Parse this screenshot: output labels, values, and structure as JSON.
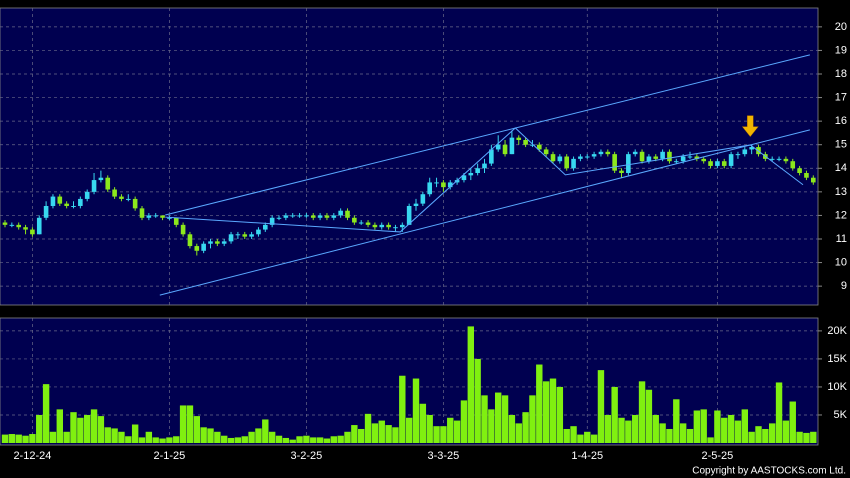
{
  "chart_data": [
    {
      "type": "candlestick",
      "categories": [
        null,
        null,
        null,
        null,
        "2-12-24",
        null,
        null,
        null,
        null,
        null,
        null,
        null,
        null,
        null,
        null,
        null,
        null,
        null,
        null,
        null,
        null,
        null,
        null,
        null,
        "2-1-25",
        null,
        null,
        null,
        null,
        null,
        null,
        null,
        null,
        null,
        null,
        null,
        null,
        null,
        null,
        null,
        null,
        null,
        null,
        null,
        "3-2-25",
        null,
        null,
        null,
        null,
        null,
        null,
        null,
        null,
        null,
        null,
        null,
        null,
        null,
        null,
        null,
        null,
        null,
        null,
        null,
        "3-3-25",
        null,
        null,
        null,
        null,
        null,
        null,
        null,
        null,
        null,
        null,
        null,
        null,
        null,
        null,
        null,
        null,
        null,
        null,
        null,
        null,
        "1-4-25",
        null,
        null,
        null,
        null,
        null,
        null,
        null,
        null,
        null,
        null,
        null,
        null,
        null,
        null,
        null,
        null,
        null,
        null,
        "2-5-25",
        null,
        null,
        null,
        null,
        null,
        null,
        null,
        null,
        null,
        null,
        null,
        null,
        null,
        null
      ],
      "ohlc": [
        [
          11.7,
          11.8,
          11.5,
          11.6
        ],
        [
          11.6,
          11.7,
          11.5,
          11.6
        ],
        [
          11.6,
          11.7,
          11.4,
          11.5
        ],
        [
          11.5,
          11.6,
          11.2,
          11.4
        ],
        [
          11.4,
          11.5,
          11.1,
          11.2
        ],
        [
          11.2,
          12.0,
          11.2,
          11.9
        ],
        [
          11.9,
          12.6,
          11.8,
          12.4
        ],
        [
          12.4,
          12.9,
          12.3,
          12.8
        ],
        [
          12.8,
          12.9,
          12.4,
          12.5
        ],
        [
          12.5,
          12.6,
          12.3,
          12.4
        ],
        [
          12.4,
          12.6,
          12.3,
          12.4
        ],
        [
          12.4,
          12.8,
          12.3,
          12.7
        ],
        [
          12.7,
          13.1,
          12.6,
          13.0
        ],
        [
          13.0,
          13.8,
          12.9,
          13.5
        ],
        [
          13.5,
          13.9,
          13.4,
          13.6
        ],
        [
          13.6,
          13.7,
          13.0,
          13.1
        ],
        [
          13.1,
          13.2,
          12.7,
          12.8
        ],
        [
          12.8,
          12.9,
          12.6,
          12.7
        ],
        [
          12.7,
          12.9,
          12.6,
          12.7
        ],
        [
          12.7,
          12.8,
          12.2,
          12.3
        ],
        [
          12.3,
          12.4,
          11.8,
          11.9
        ],
        [
          11.9,
          12.1,
          11.8,
          12.0
        ],
        [
          12.0,
          12.1,
          11.9,
          12.0
        ],
        [
          12.0,
          12.0,
          11.8,
          11.9
        ],
        [
          11.9,
          12.0,
          11.8,
          11.9
        ],
        [
          11.9,
          11.9,
          11.5,
          11.6
        ],
        [
          11.6,
          11.7,
          11.1,
          11.2
        ],
        [
          11.2,
          11.3,
          10.6,
          10.7
        ],
        [
          10.7,
          10.8,
          10.3,
          10.5
        ],
        [
          10.5,
          10.9,
          10.4,
          10.8
        ],
        [
          10.8,
          11.0,
          10.6,
          10.9
        ],
        [
          10.9,
          11.0,
          10.7,
          10.8
        ],
        [
          10.8,
          11.0,
          10.7,
          10.9
        ],
        [
          10.9,
          11.3,
          10.8,
          11.2
        ],
        [
          11.2,
          11.3,
          11.0,
          11.2
        ],
        [
          11.2,
          11.3,
          11.0,
          11.1
        ],
        [
          11.1,
          11.3,
          11.0,
          11.2
        ],
        [
          11.2,
          11.5,
          11.1,
          11.4
        ],
        [
          11.4,
          11.7,
          11.3,
          11.6
        ],
        [
          11.6,
          12.0,
          11.5,
          11.9
        ],
        [
          11.9,
          12.0,
          11.8,
          11.9
        ],
        [
          11.9,
          12.1,
          11.8,
          12.0
        ],
        [
          12.0,
          12.1,
          11.9,
          12.0
        ],
        [
          12.0,
          12.1,
          11.9,
          12.0
        ],
        [
          12.0,
          12.1,
          11.9,
          12.0
        ],
        [
          12.0,
          12.1,
          11.8,
          11.9
        ],
        [
          11.9,
          12.1,
          11.8,
          12.0
        ],
        [
          12.0,
          12.1,
          11.8,
          11.9
        ],
        [
          11.9,
          12.1,
          11.8,
          12.0
        ],
        [
          12.0,
          12.3,
          11.9,
          12.2
        ],
        [
          12.2,
          12.3,
          11.8,
          11.9
        ],
        [
          11.9,
          12.0,
          11.6,
          11.7
        ],
        [
          11.7,
          11.8,
          11.6,
          11.7
        ],
        [
          11.7,
          11.8,
          11.5,
          11.6
        ],
        [
          11.6,
          11.7,
          11.4,
          11.5
        ],
        [
          11.5,
          11.7,
          11.4,
          11.6
        ],
        [
          11.6,
          11.7,
          11.4,
          11.5
        ],
        [
          11.5,
          11.6,
          11.3,
          11.5
        ],
        [
          11.5,
          11.7,
          11.3,
          11.6
        ],
        [
          11.6,
          12.5,
          11.6,
          12.4
        ],
        [
          12.4,
          12.7,
          12.2,
          12.5
        ],
        [
          12.5,
          13.0,
          12.4,
          12.9
        ],
        [
          12.9,
          13.6,
          12.8,
          13.4
        ],
        [
          13.4,
          13.6,
          13.2,
          13.4
        ],
        [
          13.4,
          13.5,
          13.0,
          13.2
        ],
        [
          13.2,
          13.5,
          13.1,
          13.4
        ],
        [
          13.4,
          13.6,
          13.3,
          13.5
        ],
        [
          13.5,
          13.8,
          13.4,
          13.7
        ],
        [
          13.7,
          14.0,
          13.5,
          13.8
        ],
        [
          13.8,
          14.2,
          13.7,
          14.0
        ],
        [
          14.0,
          14.4,
          13.8,
          14.2
        ],
        [
          14.2,
          15.0,
          14.1,
          14.8
        ],
        [
          14.8,
          15.4,
          14.7,
          15.0
        ],
        [
          15.0,
          15.2,
          14.5,
          14.6
        ],
        [
          14.6,
          15.6,
          14.6,
          15.3
        ],
        [
          15.3,
          15.4,
          15.0,
          15.2
        ],
        [
          15.2,
          15.3,
          14.9,
          15.0
        ],
        [
          15.0,
          15.2,
          14.9,
          15.0
        ],
        [
          15.0,
          15.1,
          14.7,
          14.8
        ],
        [
          14.8,
          14.9,
          14.5,
          14.6
        ],
        [
          14.6,
          14.7,
          14.2,
          14.3
        ],
        [
          14.3,
          14.6,
          14.2,
          14.5
        ],
        [
          14.5,
          14.6,
          13.9,
          14.0
        ],
        [
          14.0,
          14.5,
          13.9,
          14.4
        ],
        [
          14.4,
          14.6,
          14.3,
          14.5
        ],
        [
          14.5,
          14.6,
          14.4,
          14.5
        ],
        [
          14.5,
          14.7,
          14.4,
          14.6
        ],
        [
          14.6,
          14.8,
          14.5,
          14.7
        ],
        [
          14.7,
          14.8,
          14.5,
          14.6
        ],
        [
          14.6,
          14.7,
          13.8,
          13.9
        ],
        [
          13.9,
          14.0,
          13.6,
          13.8
        ],
        [
          13.8,
          14.7,
          13.7,
          14.6
        ],
        [
          14.6,
          14.8,
          14.5,
          14.7
        ],
        [
          14.7,
          14.8,
          14.2,
          14.3
        ],
        [
          14.3,
          14.6,
          14.2,
          14.5
        ],
        [
          14.5,
          14.6,
          14.3,
          14.4
        ],
        [
          14.4,
          14.8,
          14.3,
          14.7
        ],
        [
          14.7,
          14.8,
          14.2,
          14.3
        ],
        [
          14.3,
          14.4,
          14.2,
          14.3
        ],
        [
          14.3,
          14.6,
          14.2,
          14.5
        ],
        [
          14.5,
          14.7,
          14.4,
          14.5
        ],
        [
          14.5,
          14.6,
          14.3,
          14.4
        ],
        [
          14.4,
          14.5,
          14.2,
          14.3
        ],
        [
          14.3,
          14.4,
          14.0,
          14.1
        ],
        [
          14.1,
          14.4,
          14.0,
          14.3
        ],
        [
          14.3,
          14.4,
          14.0,
          14.1
        ],
        [
          14.1,
          14.7,
          14.0,
          14.6
        ],
        [
          14.6,
          14.7,
          14.4,
          14.6
        ],
        [
          14.6,
          14.9,
          14.5,
          14.8
        ],
        [
          14.8,
          15.0,
          14.6,
          14.9
        ],
        [
          14.9,
          15.0,
          14.5,
          14.6
        ],
        [
          14.6,
          14.7,
          14.3,
          14.4
        ],
        [
          14.4,
          14.5,
          14.3,
          14.4
        ],
        [
          14.4,
          14.5,
          14.3,
          14.4
        ],
        [
          14.4,
          14.5,
          14.2,
          14.3
        ],
        [
          14.3,
          14.4,
          13.9,
          14.0
        ],
        [
          14.0,
          14.1,
          13.7,
          13.8
        ],
        [
          13.8,
          13.9,
          13.5,
          13.6
        ],
        [
          13.6,
          13.7,
          13.3,
          13.4
        ]
      ],
      "up_color": "#38d8f0",
      "down_color": "#8ce81c",
      "ylim": [
        8.2,
        20.8
      ],
      "yticks": [
        9,
        10,
        11,
        12,
        13,
        14,
        15,
        16,
        17,
        18,
        19,
        20
      ],
      "grid": true,
      "trendlines": [
        [
          [
            23.4,
            12.02
          ],
          [
            117.5,
            18.81
          ]
        ],
        [
          [
            22.6,
            8.62
          ],
          [
            117.5,
            15.63
          ]
        ],
        [
          [
            23.4,
            11.93
          ],
          [
            57.7,
            11.3
          ],
          [
            74.5,
            15.71
          ],
          [
            81.8,
            13.72
          ],
          [
            108.8,
            14.99
          ],
          [
            116.5,
            13.3
          ]
        ]
      ],
      "arrow": {
        "x": 108.8,
        "y": 15.3,
        "color": "#f0b400"
      }
    },
    {
      "type": "bar",
      "values": [
        1500,
        1600,
        1500,
        1300,
        1600,
        5000,
        10500,
        2000,
        6000,
        2000,
        5500,
        4500,
        5000,
        6000,
        4800,
        2800,
        2600,
        2000,
        1200,
        3300,
        1000,
        2000,
        1000,
        800,
        1000,
        1200,
        6700,
        6700,
        4800,
        2800,
        2600,
        2000,
        1300,
        900,
        1000,
        1200,
        2000,
        2600,
        4200,
        2000,
        1300,
        900,
        600,
        1200,
        1300,
        1000,
        1000,
        800,
        1200,
        1300,
        2000,
        3200,
        2500,
        5200,
        3500,
        4000,
        3200,
        2800,
        12000,
        4500,
        11500,
        7000,
        5000,
        3000,
        3000,
        4500,
        4000,
        7600,
        20800,
        15000,
        8500,
        6000,
        9000,
        8500,
        5000,
        3500,
        5500,
        8500,
        14000,
        11000,
        11500,
        10000,
        2500,
        3000,
        1500,
        2000,
        1500,
        13000,
        5000,
        10000,
        4500,
        4000,
        5000,
        11000,
        9500,
        5000,
        3500,
        2500,
        7800,
        3500,
        2500,
        5800,
        6000,
        1000,
        5800,
        4500,
        5000,
        4000,
        6000,
        2000,
        3000,
        2500,
        3500,
        10800,
        4000,
        7400,
        2000,
        1800,
        2000
      ],
      "color": "#80f010",
      "ylim": [
        0,
        22300
      ],
      "yticks": [
        {
          "value": 5000,
          "label": "5K"
        },
        {
          "value": 10000,
          "label": "10K"
        },
        {
          "value": 15000,
          "label": "15K"
        },
        {
          "value": 20000,
          "label": "20K"
        }
      ],
      "grid": true
    }
  ],
  "footer": {
    "copyright": "Copyright by AASTOCKS.com Ltd."
  }
}
